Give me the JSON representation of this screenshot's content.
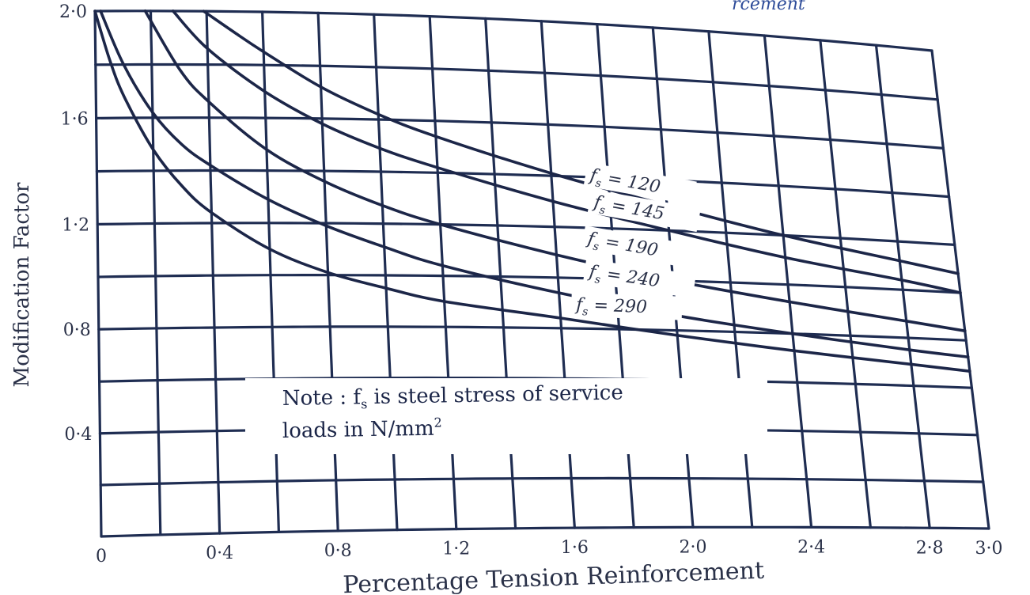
{
  "chart_data": {
    "type": "line",
    "title": "",
    "title_fragment": "rcement",
    "xlabel": "Percentage Tension Reinforcement",
    "ylabel": "Modification Factor",
    "xlim": [
      0,
      3.0
    ],
    "ylim": [
      0,
      2.0
    ],
    "grid": true,
    "x_ticks": [
      {
        "value": 0,
        "label": "0"
      },
      {
        "value": 0.4,
        "label": "0·4"
      },
      {
        "value": 0.8,
        "label": "0·8"
      },
      {
        "value": 1.2,
        "label": "1·2"
      },
      {
        "value": 1.6,
        "label": "1·6"
      },
      {
        "value": 2.0,
        "label": "2·0"
      },
      {
        "value": 2.4,
        "label": "2·4"
      },
      {
        "value": 2.8,
        "label": "2·8"
      },
      {
        "value": 3.0,
        "label": "3·0"
      }
    ],
    "y_ticks": [
      {
        "value": 0.4,
        "label": "0·4"
      },
      {
        "value": 0.8,
        "label": "0·8"
      },
      {
        "value": 1.2,
        "label": "1·2"
      },
      {
        "value": 1.6,
        "label": "1·6"
      },
      {
        "value": 2.0,
        "label": "2·0"
      }
    ],
    "series": [
      {
        "name": "fs = 120",
        "label_prefix": "f",
        "label_sub": "s",
        "label_rest": " = 120",
        "x": [
          0.39,
          0.5,
          0.6,
          0.8,
          1.0,
          1.2,
          1.6,
          2.0,
          2.4,
          2.8,
          3.0
        ],
        "y": [
          2.0,
          1.92,
          1.85,
          1.72,
          1.62,
          1.54,
          1.41,
          1.3,
          1.2,
          1.12,
          1.08
        ]
      },
      {
        "name": "fs = 145",
        "label_prefix": "f",
        "label_sub": "s",
        "label_rest": " = 145",
        "x": [
          0.28,
          0.4,
          0.6,
          0.8,
          1.0,
          1.2,
          1.6,
          2.0,
          2.4,
          2.8,
          3.0
        ],
        "y": [
          2.0,
          1.86,
          1.7,
          1.58,
          1.49,
          1.42,
          1.3,
          1.2,
          1.11,
          1.04,
          1.0
        ]
      },
      {
        "name": "fs = 190",
        "label_prefix": "f",
        "label_sub": "s",
        "label_rest": " = 190",
        "x": [
          0.18,
          0.3,
          0.4,
          0.6,
          0.8,
          1.0,
          1.2,
          1.6,
          2.0,
          2.4,
          2.8,
          3.0
        ],
        "y": [
          2.0,
          1.78,
          1.66,
          1.48,
          1.36,
          1.27,
          1.2,
          1.09,
          1.0,
          0.93,
          0.87,
          0.84
        ]
      },
      {
        "name": "fs = 240",
        "label_prefix": "f",
        "label_sub": "s",
        "label_rest": " = 240",
        "x": [
          0.02,
          0.1,
          0.2,
          0.3,
          0.4,
          0.6,
          0.8,
          1.0,
          1.2,
          1.6,
          2.0,
          2.4,
          2.8,
          3.0
        ],
        "y": [
          2.0,
          1.8,
          1.62,
          1.5,
          1.42,
          1.29,
          1.19,
          1.11,
          1.04,
          0.94,
          0.86,
          0.8,
          0.75,
          0.73
        ]
      },
      {
        "name": "fs = 290",
        "label_prefix": "f",
        "label_sub": "s",
        "label_rest": " = 290",
        "x": [
          0.0,
          0.05,
          0.1,
          0.2,
          0.3,
          0.4,
          0.6,
          0.8,
          1.0,
          1.2,
          1.6,
          2.0,
          2.4,
          2.8,
          3.0
        ],
        "y": [
          2.0,
          1.82,
          1.68,
          1.48,
          1.34,
          1.24,
          1.1,
          1.01,
          0.95,
          0.9,
          0.84,
          0.78,
          0.73,
          0.69,
          0.67
        ]
      }
    ],
    "note": {
      "line1_prefix": "Note : f",
      "line1_sub": "s",
      "line1_rest": " is steel stress of service",
      "line2_prefix": "loads in N/mm",
      "line2_sup": "2"
    }
  }
}
